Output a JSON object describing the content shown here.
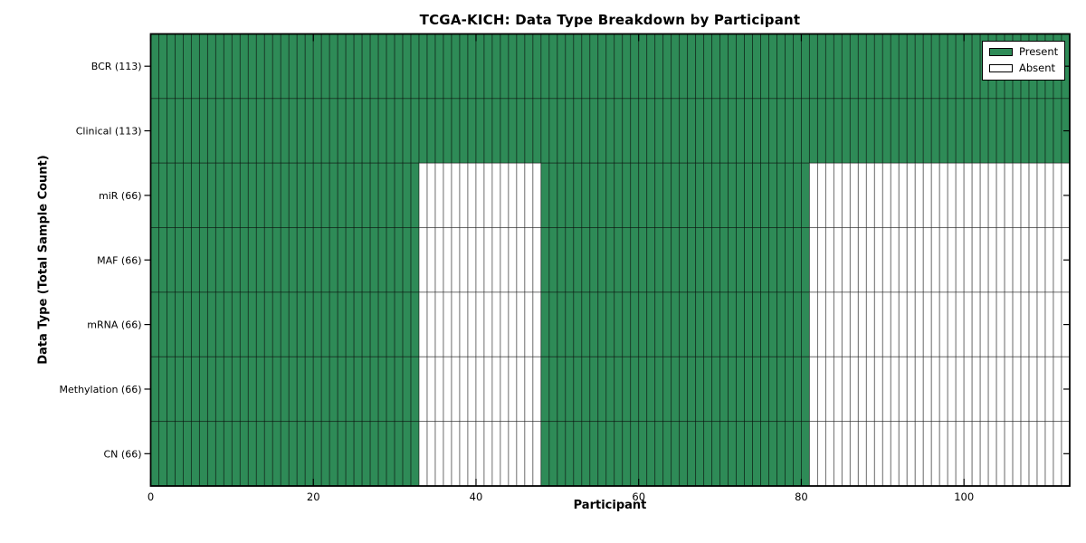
{
  "figure": {
    "background": "#ffffff"
  },
  "chart_data": {
    "type": "heatmap",
    "title": "TCGA-KICH: Data Type Breakdown by Participant",
    "xlabel": "Participant",
    "ylabel": "Data Type (Total Sample Count)",
    "x_min": 0,
    "x_max": 113,
    "n_participants": 113,
    "x_ticks": [
      0,
      20,
      40,
      60,
      80,
      100
    ],
    "grid": false,
    "rows": [
      {
        "label": "BCR (113)",
        "data_type": "BCR",
        "total_samples": 113,
        "present_ranges": [
          [
            0,
            113
          ]
        ]
      },
      {
        "label": "Clinical (113)",
        "data_type": "Clinical",
        "total_samples": 113,
        "present_ranges": [
          [
            0,
            113
          ]
        ]
      },
      {
        "label": "miR (66)",
        "data_type": "miR",
        "total_samples": 66,
        "present_ranges": [
          [
            0,
            33
          ],
          [
            48,
            81
          ]
        ]
      },
      {
        "label": "MAF (66)",
        "data_type": "MAF",
        "total_samples": 66,
        "present_ranges": [
          [
            0,
            33
          ],
          [
            48,
            81
          ]
        ]
      },
      {
        "label": "mRNA (66)",
        "data_type": "mRNA",
        "total_samples": 66,
        "present_ranges": [
          [
            0,
            33
          ],
          [
            48,
            81
          ]
        ]
      },
      {
        "label": "Methylation (66)",
        "data_type": "Methylation",
        "total_samples": 66,
        "present_ranges": [
          [
            0,
            33
          ],
          [
            48,
            81
          ]
        ]
      },
      {
        "label": "CN (66)",
        "data_type": "CN",
        "total_samples": 66,
        "present_ranges": [
          [
            0,
            33
          ],
          [
            48,
            81
          ]
        ]
      }
    ],
    "legend": {
      "position": "upper right",
      "entries": [
        {
          "label": "Present",
          "color": "#2e8b57"
        },
        {
          "label": "Absent",
          "color": "#ffffff"
        }
      ]
    },
    "colors": {
      "present": "#2e8b57",
      "absent": "#ffffff",
      "cell_edge": "#000000",
      "frame": "#000000",
      "background": "#ffffff"
    }
  }
}
